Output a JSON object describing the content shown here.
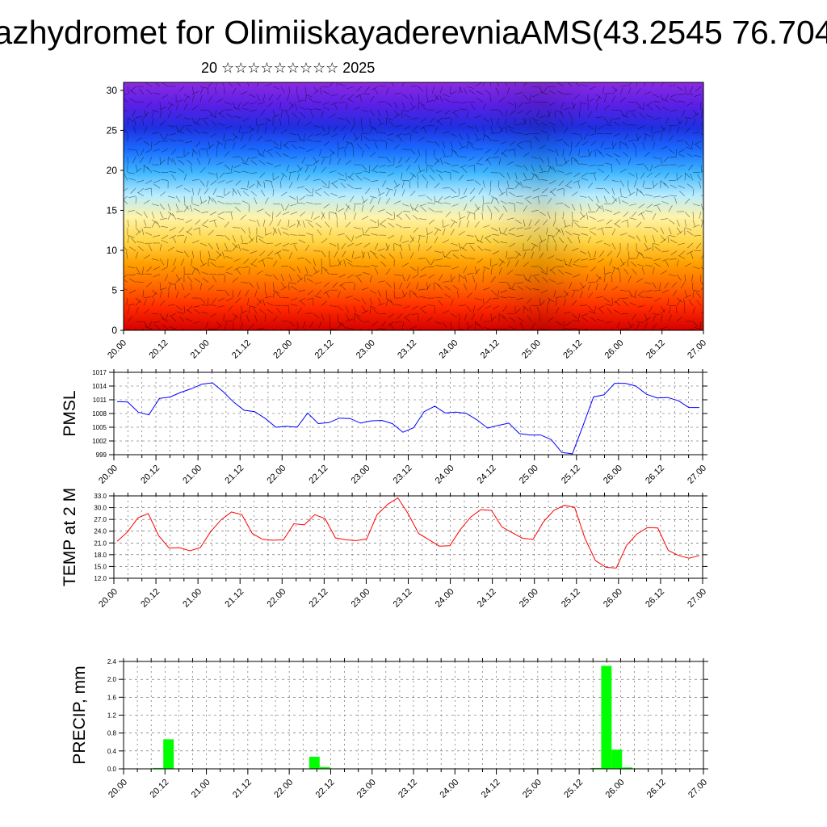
{
  "header": {
    "title": "azhydromet for OlimiiskayaderevniaAMS(43.2545 76.704",
    "subtitle": "20 ☆☆☆☆☆☆☆☆☆ 2025"
  },
  "chart_data": [
    {
      "type": "heatmap",
      "name": "cross-section",
      "x_tick_labels": [
        "20.00",
        "20.12",
        "21.00",
        "21.12",
        "22.00",
        "22.12",
        "23.00",
        "23.12",
        "24.00",
        "24.12",
        "25.00",
        "25.12",
        "26.00",
        "26.12",
        "27.00"
      ],
      "y_tick_labels": [
        "0",
        "5",
        "10",
        "15",
        "20",
        "25",
        "30"
      ],
      "ylim": [
        0,
        31
      ],
      "colormap": [
        "#d40000",
        "#ff2a00",
        "#ff6a00",
        "#ffa200",
        "#ffd84a",
        "#fff3a8",
        "#b8ecff",
        "#3fb7ff",
        "#1a6dff",
        "#1f2fe0",
        "#5a1fe6",
        "#8a2be2"
      ]
    },
    {
      "type": "line",
      "ylabel": "PMSL",
      "x_tick_labels": [
        "20.00",
        "20.12",
        "21.00",
        "21.12",
        "22.00",
        "22.12",
        "23.00",
        "23.12",
        "24.00",
        "24.12",
        "25.00",
        "25.12",
        "26.00",
        "26.12",
        "27.00"
      ],
      "y_tick_labels": [
        "999",
        "1002",
        "1005",
        "1008",
        "1011",
        "1014",
        "1017"
      ],
      "ylim": [
        999,
        1017
      ],
      "color": "#0000ff",
      "values": [
        1010.6,
        1010.5,
        1008.3,
        1007.7,
        1011.3,
        1011.6,
        1012.6,
        1013.4,
        1014.4,
        1014.7,
        1012.8,
        1010.5,
        1008.7,
        1008.4,
        1006.9,
        1005.0,
        1005.2,
        1005.0,
        1008.1,
        1005.8,
        1006.0,
        1007.0,
        1006.9,
        1005.9,
        1006.4,
        1006.5,
        1005.8,
        1003.9,
        1004.9,
        1008.4,
        1009.6,
        1008.1,
        1008.3,
        1008.0,
        1006.6,
        1004.8,
        1005.4,
        1005.9,
        1003.6,
        1003.3,
        1003.3,
        1002.3,
        999.5,
        999.2,
        1005.3,
        1011.6,
        1012.1,
        1014.6,
        1014.6,
        1014.0,
        1012.2,
        1011.4,
        1011.5,
        1010.8,
        1009.3,
        1009.3
      ]
    },
    {
      "type": "line",
      "ylabel": "TEMP at 2 M",
      "x_tick_labels": [
        "20.00",
        "20.12",
        "21.00",
        "21.12",
        "22.00",
        "22.12",
        "23.00",
        "23.12",
        "24.00",
        "24.12",
        "25.00",
        "25.12",
        "26.00",
        "26.12",
        "27.00"
      ],
      "y_tick_labels": [
        "12.0",
        "15.0",
        "18.0",
        "21.0",
        "24.0",
        "27.0",
        "30.0",
        "33.0"
      ],
      "ylim": [
        12,
        33
      ],
      "color": "#ff0000",
      "values": [
        21.4,
        23.8,
        27.4,
        28.5,
        22.8,
        19.7,
        19.8,
        19.0,
        19.8,
        23.9,
        26.9,
        28.9,
        28.2,
        23.4,
        21.9,
        21.7,
        21.8,
        25.9,
        25.6,
        28.2,
        27.2,
        22.3,
        21.8,
        21.6,
        22.0,
        28.2,
        30.8,
        32.5,
        28.4,
        23.4,
        21.8,
        20.2,
        20.3,
        24.4,
        27.6,
        29.5,
        29.3,
        25.1,
        23.6,
        22.2,
        21.9,
        26.4,
        29.3,
        30.6,
        30.1,
        22.1,
        16.5,
        14.8,
        14.6,
        20.4,
        23.3,
        24.9,
        24.8,
        19.1,
        17.8,
        17.1,
        17.8
      ]
    },
    {
      "type": "bar",
      "ylabel": "PRECIP, mm",
      "x_tick_labels": [
        "20.00",
        "20.12",
        "21.00",
        "21.12",
        "22.00",
        "22.12",
        "23.00",
        "23.12",
        "24.00",
        "24.12",
        "25.00",
        "25.12",
        "26.00",
        "26.12",
        "27.00"
      ],
      "y_tick_labels": [
        "0.0",
        "0.4",
        "0.8",
        "1.2",
        "1.6",
        "2.0",
        "2.4"
      ],
      "ylim": [
        0,
        2.4
      ],
      "color": "#00ff00",
      "values": [
        0,
        0,
        0,
        0.02,
        0.66,
        0,
        0,
        0,
        0,
        0,
        0,
        0,
        0,
        0,
        0,
        0,
        0,
        0,
        0.27,
        0.04,
        0,
        0,
        0,
        0,
        0,
        0,
        0,
        0,
        0,
        0,
        0,
        0,
        0,
        0,
        0,
        0,
        0,
        0,
        0,
        0,
        0,
        0,
        0,
        0,
        0,
        0.02,
        2.3,
        0.43,
        0.03,
        0,
        0,
        0,
        0,
        0,
        0,
        0
      ]
    }
  ]
}
